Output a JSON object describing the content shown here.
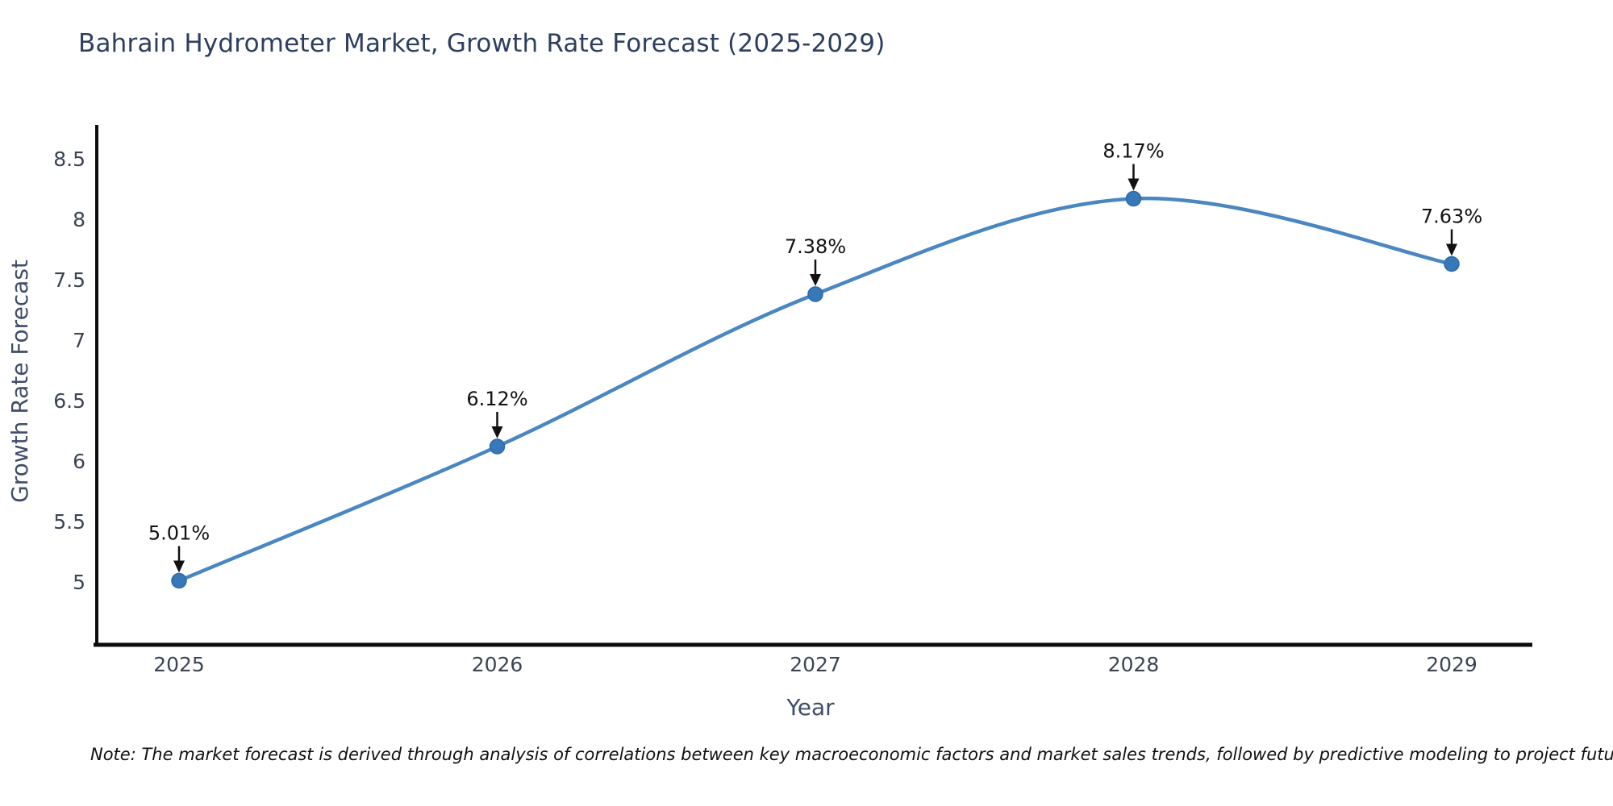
{
  "chart_data": {
    "type": "line",
    "title": "Bahrain Hydrometer Market, Growth Rate Forecast (2025-2029)",
    "xlabel": "Year",
    "ylabel": "Growth Rate Forecast",
    "categories": [
      "2025",
      "2026",
      "2027",
      "2028",
      "2029"
    ],
    "x": [
      2025,
      2026,
      2027,
      2028,
      2029
    ],
    "values": [
      5.01,
      6.12,
      7.38,
      8.17,
      7.63
    ],
    "point_labels": [
      "5.01%",
      "6.12%",
      "7.38%",
      "8.17%",
      "7.63%"
    ],
    "yticks": [
      5,
      5.5,
      6,
      6.5,
      7,
      7.5,
      8,
      8.5
    ],
    "ytick_labels": [
      "5",
      "5.5",
      "6",
      "6.5",
      "7",
      "7.5",
      "8",
      "8.5"
    ],
    "ylim": [
      4.48,
      8.78
    ],
    "grid": false,
    "legend_position": "none",
    "smooth": true,
    "line_color": "#4a87c0",
    "marker_color": "#3678b8",
    "marker_edge_color": "#2d6aa6",
    "annotation_color": "#111111"
  },
  "footnote": "Note: The market forecast is derived through analysis of correlations between key macroeconomic factors and market sales trends, followed by predictive modeling to project future sales",
  "colors": {
    "background": "#ffffff",
    "title": "#2d3e5f",
    "tick_label": "#3c4454",
    "axis_label": "#3f4d68",
    "spine": "#0d0d0d"
  }
}
